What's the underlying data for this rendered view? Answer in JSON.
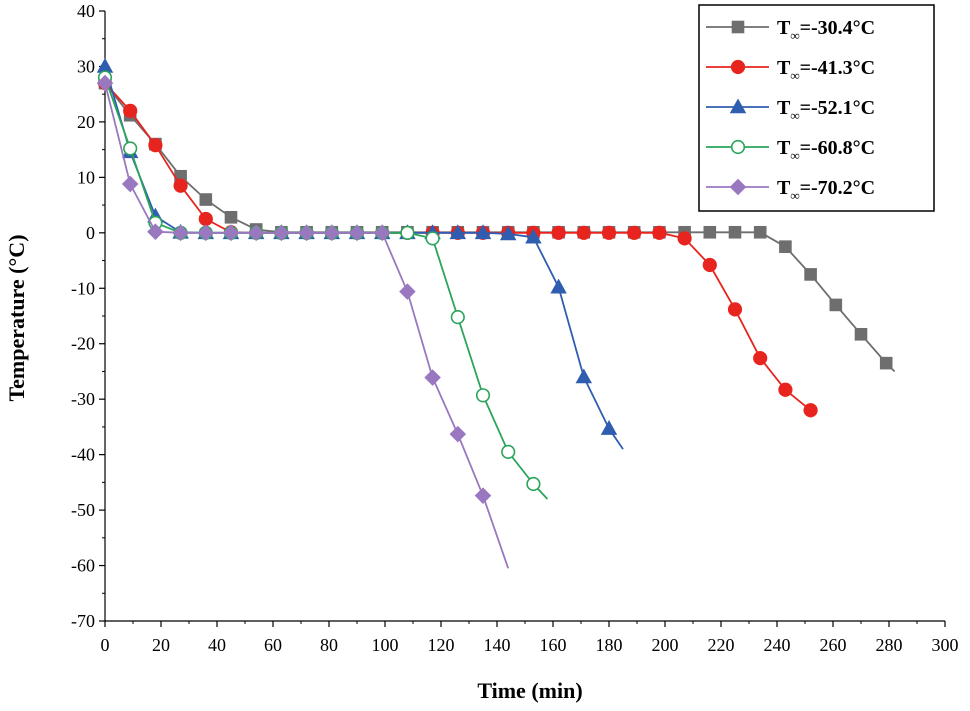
{
  "chart_data": {
    "type": "line",
    "title": "",
    "xlabel": "Time (min)",
    "ylabel": "Temperature (°C)",
    "xlim": [
      0,
      300
    ],
    "ylim": [
      -70,
      40
    ],
    "xticks": [
      0,
      20,
      40,
      60,
      80,
      100,
      120,
      140,
      160,
      180,
      200,
      220,
      240,
      260,
      280,
      300
    ],
    "yticks": [
      40,
      30,
      20,
      10,
      0,
      -10,
      -20,
      -30,
      -40,
      -50,
      -60,
      -70
    ],
    "legend_position": "top-right",
    "series": [
      {
        "name": "T∞=-30.4°C",
        "label_main": "T",
        "label_sub": "∞",
        "label_rest": "=-30.4°C",
        "color": "#6e6e6e",
        "marker": "square",
        "filled": true,
        "x": [
          0,
          9,
          18,
          27,
          36,
          45,
          54,
          63,
          72,
          81,
          90,
          99,
          108,
          117,
          126,
          135,
          144,
          153,
          162,
          171,
          180,
          189,
          198,
          207,
          216,
          225,
          234,
          243,
          252,
          261,
          270,
          279
        ],
        "y": [
          27,
          21.2,
          16,
          10.2,
          6,
          2.8,
          0.6,
          0.1,
          0.1,
          0.1,
          0.1,
          0.1,
          0.1,
          0.1,
          0.1,
          0.1,
          0.1,
          0.1,
          0.1,
          0.1,
          0.1,
          0.1,
          0.1,
          0.1,
          0.1,
          0.1,
          0.1,
          -2.5,
          -7.5,
          -13,
          -18.3,
          -23.5
        ],
        "x_end": 282,
        "y_end": -25
      },
      {
        "name": "T∞=-41.3°C",
        "label_main": "T",
        "label_sub": "∞",
        "label_rest": "=-41.3°C",
        "color": "#e8241e",
        "marker": "circle",
        "filled": true,
        "x": [
          0,
          9,
          18,
          27,
          36,
          45,
          54,
          63,
          72,
          81,
          90,
          99,
          108,
          117,
          126,
          135,
          144,
          153,
          162,
          171,
          180,
          189,
          198,
          207,
          216,
          225,
          234,
          243,
          252
        ],
        "y": [
          27,
          22,
          15.8,
          8.5,
          2.5,
          0.1,
          0,
          0,
          0,
          0,
          0,
          0,
          0,
          0,
          0,
          0,
          0,
          0,
          0,
          0,
          0,
          0,
          0,
          -1,
          -5.8,
          -13.8,
          -22.6,
          -28.3,
          -32
        ],
        "x_end": 254,
        "y_end": -32.2
      },
      {
        "name": "T∞=-52.1°C",
        "label_main": "T",
        "label_sub": "∞",
        "label_rest": "=-52.1°C",
        "color": "#2f5eb0",
        "marker": "triangle",
        "filled": true,
        "x": [
          0,
          9,
          18,
          27,
          36,
          45,
          54,
          63,
          72,
          81,
          90,
          99,
          108,
          117,
          126,
          135,
          144,
          153,
          162,
          171,
          180
        ],
        "y": [
          30,
          14.6,
          3,
          0.1,
          0,
          0,
          0,
          0,
          0,
          0,
          0,
          0,
          0,
          0,
          0,
          0,
          -0.2,
          -0.8,
          -9.8,
          -26,
          -35.3
        ],
        "x_end": 185,
        "y_end": -39
      },
      {
        "name": "T∞=-60.8°C",
        "label_main": "T",
        "label_sub": "∞",
        "label_rest": "=-60.8°C",
        "color": "#2aa55a",
        "marker": "circle",
        "filled": false,
        "x": [
          0,
          9,
          18,
          27,
          36,
          45,
          54,
          63,
          72,
          81,
          90,
          99,
          108,
          117,
          126,
          135,
          144,
          153
        ],
        "y": [
          28,
          15.2,
          1.8,
          0,
          0,
          0,
          0,
          0,
          0,
          0,
          0,
          0,
          0,
          -1,
          -15.2,
          -29.3,
          -39.5,
          -45.3
        ],
        "x_end": 158,
        "y_end": -48
      },
      {
        "name": "T∞=-70.2°C",
        "label_main": "T",
        "label_sub": "∞",
        "label_rest": "=-70.2°C",
        "color": "#9a78c0",
        "marker": "diamond",
        "filled": true,
        "x": [
          0,
          9,
          18,
          27,
          36,
          45,
          54,
          63,
          72,
          81,
          90,
          99,
          108,
          117,
          126,
          135
        ],
        "y": [
          27,
          8.8,
          0.2,
          0,
          0,
          0,
          0,
          0,
          0,
          0,
          0,
          0,
          -10.6,
          -26.1,
          -36.3,
          -47.4
        ],
        "x_end": 144,
        "y_end": -60.5
      }
    ]
  }
}
